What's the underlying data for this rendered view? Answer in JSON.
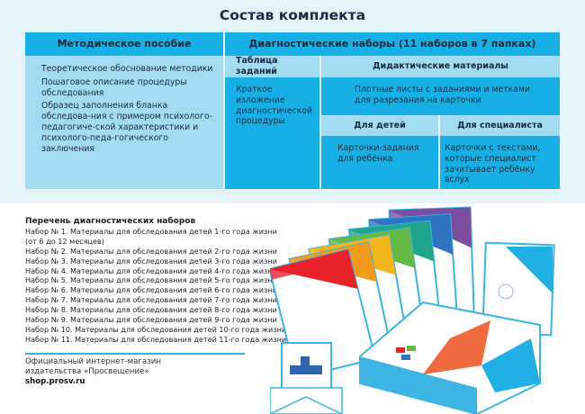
{
  "title": "Состав комплекта",
  "table": {
    "col1_header": "Методическое пособие",
    "col1_items": [
      "Теоретическое обоснование методики",
      "Пошаговое описание процедуры обследования",
      "Образец заполнения бланка обследова-ния с примером психолого-педагогиче-ской характеристики и психолого-педа-гогического заключения"
    ],
    "col2_header": "Диагностические наборы (11 наборов в 7 папках)",
    "tasks_header": "Таблица заданий",
    "tasks_text": "Краткое изложение диагностической процедуры",
    "didactic_header": "Дидактические материалы",
    "didactic_text": "Плотные листы с заданиями и метками для разрезания на карточки",
    "kids_header": "Для детей",
    "kids_text": "Карточки-задания для ребёнка",
    "spec_header": "Для специалиста",
    "spec_text": "Карточки с текстами, которые специалист зачитывает ребёнку вслух"
  },
  "list": {
    "heading": "Перечень диагностических наборов",
    "items": [
      "Набор № 1. Материалы для обследования детей 1-го года жизни",
      "(от 6 до 12 месяцев)",
      "Набор № 2. Материалы для обследования детей 2-го года жизни",
      "Набор № 3. Материалы для обследования детей 3-го года жизни",
      "Набор № 4. Материалы для обследования детей 4-го года жизни",
      "Набор № 5. Материалы для обследования детей 5-го года жизни",
      "Набор № 6. Материалы для обследования детей 6-го года жизни",
      "Набор № 7. Материалы для обследования детей 7-го года жизни",
      "Набор № 8. Материалы для обследования детей 8-го года жизни",
      "Набор № 9. Материалы для обследования детей 9-го года жизни",
      "Набор № 10. Материалы для обследования детей 10-го года жизни",
      "Набор № 11. Материалы для обследования детей 11-го года жизни"
    ]
  },
  "shop": {
    "line1": "Официальный интернет-магазин",
    "line2": "издательства «Просвещение»",
    "url": "shop.prosv.ru"
  },
  "colors": {
    "header": "#17b0e6",
    "light": "#a3dbf3",
    "background": "#e3f3f7",
    "folders": [
      "#e8222a",
      "#f39a1d",
      "#f2b51c",
      "#63b944",
      "#1fa58c",
      "#2f74c0",
      "#7c4ea0"
    ]
  }
}
